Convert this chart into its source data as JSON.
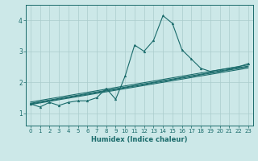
{
  "xlabel": "Humidex (Indice chaleur)",
  "ylabel": "",
  "bg_color": "#cce8e8",
  "grid_color": "#aacccc",
  "line_color": "#1a6b6b",
  "xlim": [
    -0.5,
    23.5
  ],
  "ylim": [
    0.6,
    4.5
  ],
  "xticks": [
    0,
    1,
    2,
    3,
    4,
    5,
    6,
    7,
    8,
    9,
    10,
    11,
    12,
    13,
    14,
    15,
    16,
    17,
    18,
    19,
    20,
    21,
    22,
    23
  ],
  "yticks": [
    1,
    2,
    3,
    4
  ],
  "series": [
    [
      0,
      1.3
    ],
    [
      1,
      1.2
    ],
    [
      2,
      1.35
    ],
    [
      3,
      1.25
    ],
    [
      4,
      1.35
    ],
    [
      5,
      1.4
    ],
    [
      6,
      1.4
    ],
    [
      7,
      1.5
    ],
    [
      8,
      1.8
    ],
    [
      9,
      1.45
    ],
    [
      10,
      2.2
    ],
    [
      11,
      3.2
    ],
    [
      12,
      3.0
    ],
    [
      13,
      3.35
    ],
    [
      14,
      4.15
    ],
    [
      15,
      3.9
    ],
    [
      16,
      3.05
    ],
    [
      17,
      2.75
    ],
    [
      18,
      2.45
    ],
    [
      19,
      2.35
    ],
    [
      20,
      2.4
    ],
    [
      21,
      2.45
    ],
    [
      22,
      2.5
    ],
    [
      23,
      2.6
    ]
  ],
  "regression_lines": [
    [
      [
        0,
        23
      ],
      [
        1.32,
        2.52
      ]
    ],
    [
      [
        0,
        23
      ],
      [
        1.28,
        2.46
      ]
    ],
    [
      [
        0,
        23
      ],
      [
        1.36,
        2.56
      ]
    ],
    [
      [
        0,
        23
      ],
      [
        1.3,
        2.5
      ]
    ]
  ],
  "xlabel_fontsize": 6.0,
  "tick_fontsize": 5.0,
  "marker_size": 2.0,
  "line_width": 0.8
}
